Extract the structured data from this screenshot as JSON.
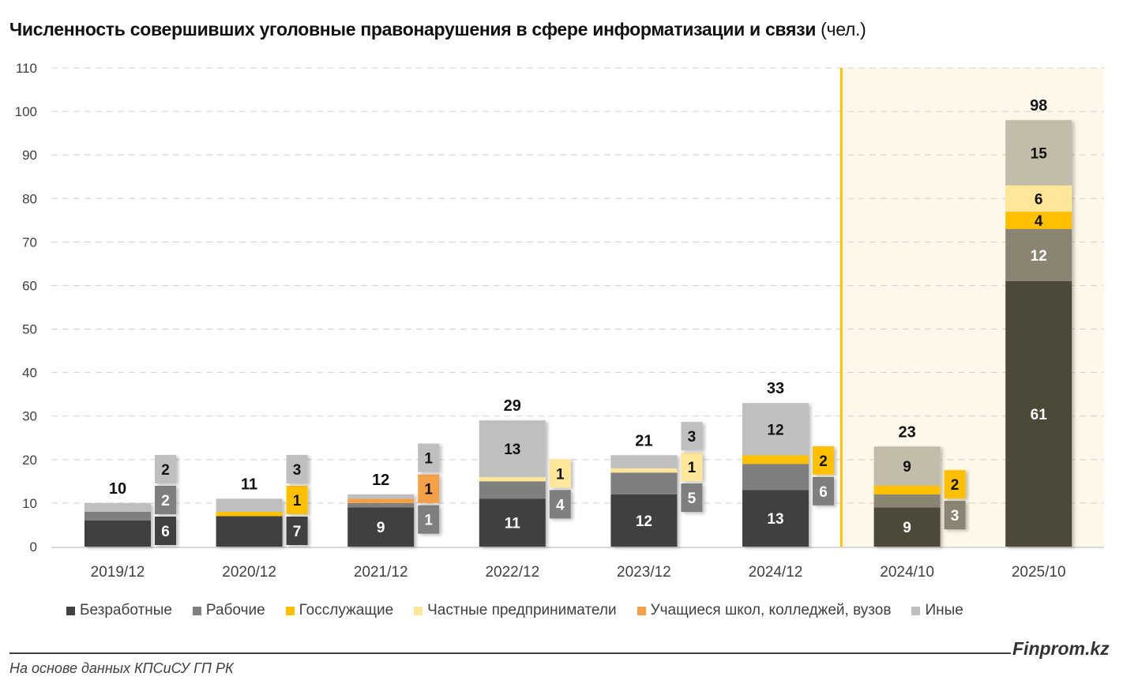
{
  "title": {
    "bold": "Численность совершивших уголовные правонарушения в сфере информатизации и связи",
    "unit": "(чел.)"
  },
  "source": "На основе данных КПСиСУ ГП РК",
  "brand": "Finprom.kz",
  "colors": {
    "normal": [
      "#404040",
      "#7f7f7f",
      "#ffc000",
      "#ffe699",
      "#f4a04a",
      "#bfbfbf"
    ],
    "highlighted": [
      "#4e4838",
      "#8b8473",
      "#ffc000",
      "#ffe699",
      "#f4a04a",
      "#c4bcab"
    ],
    "highlight_background": "#fdf8e9",
    "highlight_divider": "#ffc000"
  },
  "chart_data": {
    "type": "bar",
    "stacked": true,
    "title": "Численность совершивших уголовные правонарушения в сфере информатизации и связи (чел.)",
    "categories": [
      "2019/12",
      "2020/12",
      "2021/12",
      "2022/12",
      "2023/12",
      "2024/12",
      "2024/10",
      "2025/10"
    ],
    "highlighted_categories": [
      "2024/10",
      "2025/10"
    ],
    "series": [
      {
        "name": "Безработные",
        "values": [
          6,
          7,
          9,
          11,
          12,
          13,
          9,
          61
        ]
      },
      {
        "name": "Рабочие",
        "values": [
          2,
          0,
          1,
          4,
          5,
          6,
          3,
          12
        ]
      },
      {
        "name": "Госслужащие",
        "values": [
          0,
          1,
          0,
          0,
          0,
          2,
          2,
          4
        ]
      },
      {
        "name": "Частные предприниматели",
        "values": [
          0,
          0,
          0,
          1,
          1,
          0,
          0,
          6
        ]
      },
      {
        "name": "Учащиеся школ, колледжей, вузов",
        "values": [
          0,
          0,
          1,
          0,
          0,
          0,
          0,
          0
        ]
      },
      {
        "name": "Иные",
        "values": [
          2,
          3,
          1,
          13,
          3,
          12,
          9,
          15
        ]
      }
    ],
    "totals": [
      10,
      11,
      12,
      29,
      21,
      33,
      23,
      98
    ],
    "ylim": [
      0,
      110
    ],
    "yticks": [
      0,
      10,
      20,
      30,
      40,
      50,
      60,
      70,
      80,
      90,
      100,
      110
    ],
    "grid": true,
    "legend_position": "bottom",
    "xlabel": "",
    "ylabel": ""
  }
}
